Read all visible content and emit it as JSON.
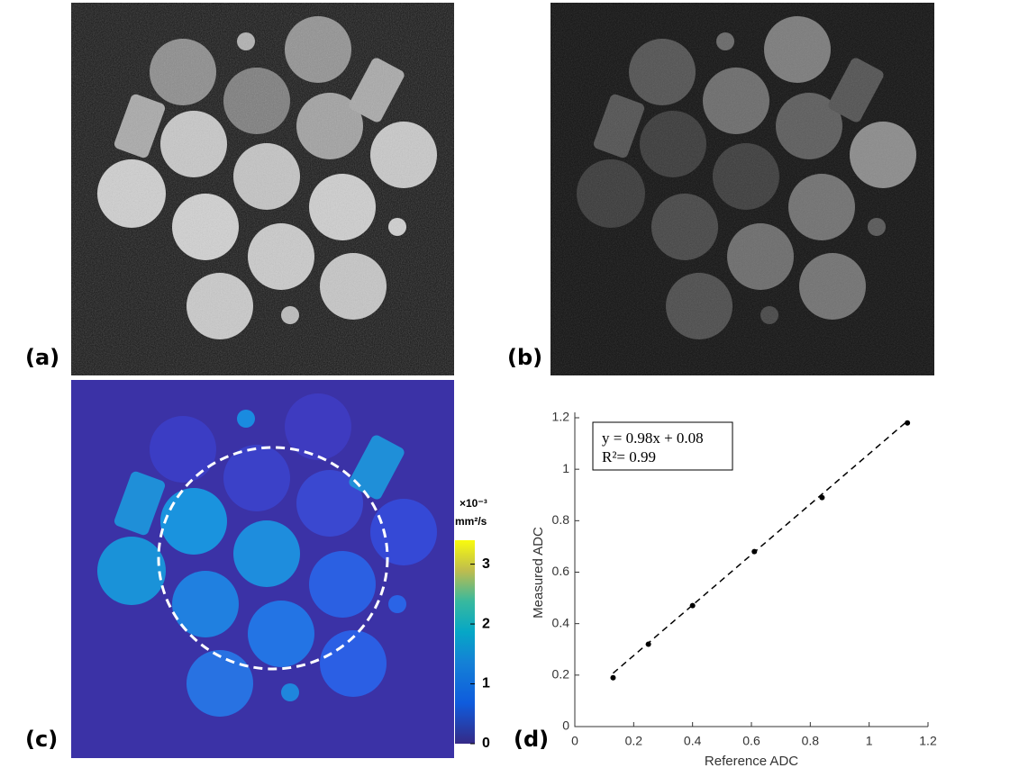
{
  "panel_labels": [
    "(a)",
    "(b)",
    "(c)",
    "(d)"
  ],
  "colorbar": {
    "unit": [
      "×10⁻³",
      "mm²/s"
    ],
    "lim": [
      0,
      3.4
    ],
    "ticks": [
      0,
      1,
      2,
      3
    ]
  },
  "chart_data": {
    "type": "scatter",
    "xlabel": "Reference ADC",
    "ylabel": "Measured ADC",
    "x": [
      0.13,
      0.25,
      0.4,
      0.61,
      0.84,
      1.13
    ],
    "values": [
      0.19,
      0.32,
      0.47,
      0.68,
      0.89,
      1.18
    ],
    "color": "#000000",
    "xlim": [
      0,
      1.2
    ],
    "ylim": [
      0,
      1.2
    ],
    "xticks": [
      0,
      0.2,
      0.4,
      0.6,
      0.8,
      1,
      1.2
    ],
    "yticks": [
      0,
      0.2,
      0.4,
      0.6,
      0.8,
      1,
      1.2
    ],
    "fit": {
      "slope": 0.98,
      "intercept": 0.08
    },
    "annotation": [
      "y = 0.98x + 0.08",
      "R²= 0.99"
    ]
  }
}
